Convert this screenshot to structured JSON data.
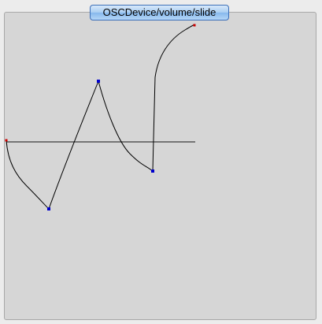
{
  "window": {
    "title": "OSCDevice/volume/slide"
  },
  "colors": {
    "panel_background": "#d6d6d6",
    "curve_stroke": "#000000",
    "baseline_stroke": "#555555",
    "endpoint_color": "#cc0000",
    "breakpoint_color": "#0000cc",
    "tab_border": "#3d6fb8"
  },
  "icons": {
    "endpoint": "red-square-handle",
    "breakpoint": "blue-square-handle"
  }
}
